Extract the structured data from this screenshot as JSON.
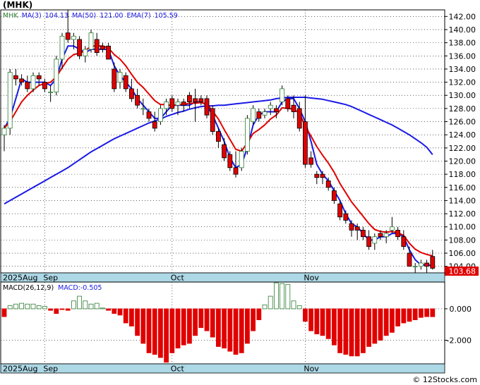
{
  "symbol_title": "(MHK)",
  "price_panel": {
    "legend": [
      {
        "text": "MHK",
        "color": "#2e7d32"
      },
      {
        "text": "MA(3)",
        "color": "#1a1ae6"
      },
      {
        "text": "104.13",
        "color": "#1a1ae6"
      },
      {
        "text": "MA(50)",
        "color": "#1a1ae6"
      },
      {
        "text": "121.00",
        "color": "#1a1ae6"
      },
      {
        "text": "EMA(7)",
        "color": "#1a1ae6"
      },
      {
        "text": "105.59",
        "color": "#1a1ae6"
      }
    ],
    "last_price_label": "103.68",
    "y_ticks": [
      "104.00",
      "106.00",
      "108.00",
      "110.00",
      "112.00",
      "114.00",
      "116.00",
      "118.00",
      "120.00",
      "122.00",
      "124.00",
      "126.00",
      "128.00",
      "130.00",
      "132.00",
      "134.00",
      "136.00",
      "138.00",
      "140.00",
      "142.00"
    ],
    "x_labels": [
      {
        "text": "2025Aug",
        "index": 0
      },
      {
        "text": "Sep",
        "index": 7
      },
      {
        "text": "Oct",
        "index": 29
      },
      {
        "text": "Nov",
        "index": 52
      }
    ]
  },
  "macd_panel": {
    "legend": [
      {
        "text": "MACD(26,12,9)",
        "color": "#000000"
      },
      {
        "text": "MACD:-0.505",
        "color": "#1a1ae6"
      }
    ],
    "y_ticks": [
      "0.000",
      "-2.000"
    ],
    "x_labels": [
      {
        "text": "2025Aug",
        "index": 0
      },
      {
        "text": "Sep",
        "index": 7
      },
      {
        "text": "Oct",
        "index": 29
      },
      {
        "text": "Nov",
        "index": 52
      }
    ]
  },
  "watermark": "© 12Stocks.com",
  "colors": {
    "up_candle": "#ffffff",
    "down_candle": "#e00000",
    "up_hist": "#2e7d32",
    "down_hist": "#e00000",
    "ma_fast": "#1a1ae6",
    "ma_slow": "#1a1ae6",
    "ema": "#e00000",
    "axis_band": "#add8e6",
    "price_tag": "#e00000"
  },
  "chart_data": [
    {
      "type": "candlestick",
      "title": "(MHK)",
      "ylim": [
        103.0,
        143.0
      ],
      "series": [
        {
          "name": "MHK",
          "ohlc": [
            [
              124.0,
              125.5,
              121.5,
              125.0
            ],
            [
              125.0,
              134.0,
              124.0,
              133.5
            ],
            [
              133.0,
              134.0,
              131.5,
              132.5
            ],
            [
              132.5,
              133.2,
              131.5,
              132.0
            ],
            [
              132.0,
              133.0,
              130.5,
              131.0
            ],
            [
              131.0,
              133.5,
              130.5,
              133.0
            ],
            [
              133.0,
              133.5,
              131.5,
              132.5
            ],
            [
              132.0,
              132.5,
              130.5,
              131.0
            ],
            [
              130.5,
              131.5,
              129.0,
              130.5
            ],
            [
              130.5,
              136.0,
              130.0,
              135.5
            ],
            [
              135.5,
              139.5,
              134.0,
              139.0
            ],
            [
              139.5,
              143.0,
              138.0,
              138.5
            ],
            [
              138.5,
              139.5,
              137.0,
              139.0
            ],
            [
              138.5,
              139.0,
              135.5,
              136.0
            ],
            [
              136.0,
              137.5,
              135.0,
              137.0
            ],
            [
              137.0,
              140.0,
              136.5,
              139.5
            ],
            [
              138.5,
              139.5,
              136.0,
              136.5
            ],
            [
              137.5,
              138.0,
              136.5,
              137.0
            ],
            [
              137.5,
              138.0,
              135.5,
              135.5
            ],
            [
              134.0,
              135.0,
              130.5,
              131.0
            ],
            [
              132.0,
              134.0,
              131.0,
              133.5
            ],
            [
              133.0,
              133.5,
              130.5,
              131.0
            ],
            [
              131.0,
              132.5,
              129.0,
              129.5
            ],
            [
              130.0,
              131.0,
              128.0,
              128.5
            ],
            [
              128.0,
              129.5,
              127.0,
              128.0
            ],
            [
              127.5,
              128.0,
              126.0,
              126.5
            ],
            [
              126.0,
              127.5,
              124.5,
              125.0
            ],
            [
              126.0,
              128.5,
              125.5,
              128.0
            ],
            [
              128.0,
              129.5,
              127.0,
              129.0
            ],
            [
              129.5,
              130.0,
              127.5,
              128.0
            ],
            [
              128.5,
              129.5,
              127.0,
              129.0
            ],
            [
              129.0,
              129.5,
              127.5,
              128.5
            ],
            [
              130.0,
              130.5,
              128.0,
              129.0
            ],
            [
              129.5,
              131.0,
              126.0,
              129.0
            ],
            [
              129.5,
              130.0,
              128.5,
              129.0
            ],
            [
              129.5,
              130.0,
              126.5,
              127.0
            ],
            [
              128.0,
              128.5,
              124.0,
              124.5
            ],
            [
              124.5,
              125.0,
              122.0,
              123.0
            ],
            [
              122.5,
              123.5,
              120.0,
              120.5
            ],
            [
              121.0,
              121.5,
              118.5,
              119.0
            ],
            [
              119.0,
              121.5,
              117.5,
              118.0
            ],
            [
              119.0,
              122.0,
              118.5,
              121.5
            ],
            [
              121.5,
              127.0,
              121.0,
              126.5
            ],
            [
              126.0,
              128.5,
              125.5,
              128.0
            ],
            [
              127.5,
              128.0,
              126.0,
              126.5
            ],
            [
              127.0,
              128.0,
              126.5,
              127.5
            ],
            [
              128.0,
              129.0,
              127.0,
              128.5
            ],
            [
              128.0,
              128.5,
              126.5,
              127.5
            ],
            [
              129.0,
              131.5,
              128.5,
              131.0
            ],
            [
              129.5,
              130.0,
              127.5,
              128.0
            ],
            [
              128.5,
              130.0,
              126.5,
              127.5
            ],
            [
              128.0,
              129.0,
              124.5,
              125.0
            ],
            [
              126.0,
              130.0,
              119.0,
              119.5
            ],
            [
              120.5,
              121.5,
              119.0,
              119.5
            ],
            [
              118.0,
              118.5,
              116.5,
              117.5
            ],
            [
              118.0,
              118.5,
              116.5,
              117.5
            ],
            [
              117.0,
              117.5,
              115.5,
              116.0
            ],
            [
              115.5,
              116.0,
              113.5,
              114.0
            ],
            [
              113.5,
              114.0,
              111.0,
              111.5
            ],
            [
              112.0,
              112.5,
              110.5,
              111.0
            ],
            [
              110.5,
              111.0,
              108.5,
              109.5
            ],
            [
              110.0,
              110.5,
              108.0,
              109.5
            ],
            [
              109.5,
              110.0,
              108.0,
              108.5
            ],
            [
              108.5,
              109.5,
              106.5,
              107.0
            ],
            [
              107.5,
              109.0,
              106.5,
              108.5
            ],
            [
              109.0,
              109.5,
              108.0,
              108.5
            ],
            [
              108.5,
              109.5,
              107.5,
              109.0
            ],
            [
              109.5,
              111.5,
              109.0,
              110.0
            ],
            [
              109.5,
              110.0,
              108.0,
              108.5
            ],
            [
              108.5,
              109.5,
              106.5,
              107.0
            ],
            [
              106.0,
              107.0,
              104.0,
              104.0
            ],
            [
              104.0,
              104.5,
              103.0,
              104.0
            ],
            [
              104.0,
              105.0,
              103.5,
              104.5
            ],
            [
              104.5,
              105.0,
              103.0,
              104.0
            ],
            [
              105.5,
              106.5,
              103.5,
              103.7
            ]
          ]
        },
        {
          "name": "MA(3)",
          "values": [
            125.0,
            126.5,
            129.5,
            132.5,
            132.0,
            132.0,
            132.0,
            132.0,
            131.5,
            132.5,
            135.5,
            137.5,
            137.5,
            137.0,
            136.5,
            137.0,
            137.0,
            137.0,
            137.0,
            134.5,
            133.0,
            132.0,
            131.0,
            129.5,
            128.5,
            127.5,
            126.5,
            126.5,
            127.5,
            128.5,
            128.5,
            128.5,
            128.5,
            129.0,
            129.0,
            128.5,
            127.0,
            125.0,
            123.0,
            120.5,
            119.0,
            119.5,
            122.0,
            125.5,
            127.0,
            127.5,
            127.5,
            127.5,
            129.0,
            129.5,
            129.5,
            128.0,
            126.0,
            123.0,
            119.5,
            118.0,
            117.0,
            115.5,
            114.0,
            112.0,
            110.5,
            110.0,
            109.0,
            108.0,
            108.0,
            108.5,
            108.5,
            109.0,
            109.0,
            108.5,
            106.5,
            105.0,
            104.2,
            104.2,
            104.13
          ]
        },
        {
          "name": "MA(50)",
          "values": [
            113.5,
            114.0,
            114.5,
            115.0,
            115.5,
            116.0,
            116.5,
            117.0,
            117.5,
            118.0,
            118.5,
            119.0,
            119.6,
            120.2,
            120.8,
            121.4,
            121.9,
            122.4,
            122.9,
            123.4,
            123.8,
            124.2,
            124.6,
            125.0,
            125.4,
            125.8,
            126.1,
            126.4,
            126.8,
            127.1,
            127.4,
            127.6,
            127.9,
            128.1,
            128.3,
            128.4,
            128.4,
            128.5,
            128.5,
            128.6,
            128.7,
            128.8,
            128.9,
            129.0,
            129.1,
            129.2,
            129.3,
            129.5,
            129.6,
            129.7,
            129.7,
            129.7,
            129.7,
            129.6,
            129.5,
            129.4,
            129.2,
            129.0,
            128.8,
            128.6,
            128.3,
            127.9,
            127.5,
            127.1,
            126.7,
            126.3,
            125.9,
            125.5,
            125.0,
            124.5,
            124.0,
            123.4,
            122.8,
            122.1,
            121.0
          ]
        },
        {
          "name": "EMA(7)",
          "values": [
            125.0,
            126.0,
            127.5,
            129.0,
            130.0,
            130.8,
            131.5,
            131.8,
            132.0,
            132.8,
            134.2,
            135.5,
            136.2,
            136.4,
            136.8,
            137.5,
            137.5,
            137.5,
            137.2,
            136.2,
            135.5,
            134.5,
            133.2,
            132.0,
            131.2,
            130.2,
            129.2,
            128.6,
            128.6,
            128.4,
            128.6,
            128.6,
            128.8,
            128.8,
            128.9,
            128.7,
            127.6,
            126.4,
            124.8,
            123.3,
            121.8,
            121.5,
            122.8,
            124.2,
            124.8,
            125.5,
            126.4,
            127.0,
            128.1,
            128.0,
            127.9,
            127.3,
            125.3,
            123.8,
            122.2,
            120.9,
            119.7,
            118.3,
            116.6,
            115.2,
            113.8,
            112.7,
            111.6,
            110.5,
            109.6,
            109.3,
            109.2,
            109.3,
            109.1,
            108.7,
            107.5,
            106.6,
            106.1,
            105.8,
            105.59
          ]
        }
      ]
    },
    {
      "type": "bar",
      "title": "MACD(26,12,9)",
      "ylim": [
        -3.5,
        1.7
      ],
      "series": [
        {
          "name": "MACD",
          "values": [
            -0.5,
            0.2,
            0.3,
            0.35,
            0.3,
            0.3,
            0.2,
            0.15,
            -0.1,
            -0.3,
            -0.05,
            -0.1,
            0.5,
            0.8,
            0.5,
            0.3,
            0.35,
            0.05,
            -0.1,
            -0.3,
            -0.4,
            -0.9,
            -1.1,
            -1.7,
            -2.2,
            -2.8,
            -2.9,
            -3.1,
            -3.4,
            -2.8,
            -2.5,
            -2.3,
            -2.2,
            -1.7,
            -1.2,
            -1.4,
            -1.8,
            -2.4,
            -2.5,
            -2.7,
            -2.9,
            -2.8,
            -2.2,
            -1.4,
            -0.7,
            0.25,
            0.8,
            1.65,
            1.6,
            1.55,
            0.5,
            0.2,
            -0.8,
            -1.4,
            -1.6,
            -1.7,
            -1.9,
            -2.3,
            -2.8,
            -2.9,
            -3.0,
            -3.0,
            -2.8,
            -2.4,
            -2.2,
            -2.0,
            -1.7,
            -1.5,
            -1.1,
            -0.9,
            -0.8,
            -0.7,
            -0.55,
            -0.5,
            -0.505
          ]
        }
      ]
    }
  ]
}
